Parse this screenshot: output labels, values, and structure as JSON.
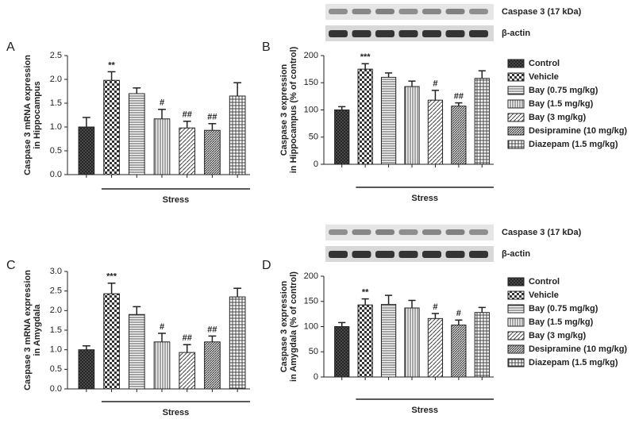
{
  "chart_data": [
    {
      "type": "bar",
      "label": "A",
      "ylabel": [
        "Caspase 3 mRNA expression",
        "in Hippocampus"
      ],
      "values": [
        1.0,
        1.98,
        1.7,
        1.17,
        0.98,
        0.93,
        1.65
      ],
      "errors": [
        0.2,
        0.18,
        0.12,
        0.2,
        0.14,
        0.14,
        0.28
      ],
      "annotations": [
        null,
        "**",
        null,
        "#",
        "##",
        "##",
        null
      ],
      "group_label": "Stress",
      "patterns": [
        "crosshatch",
        "checker",
        "horizontal",
        "vertical",
        "diagonal",
        "diagonal-dense",
        "grid"
      ],
      "ylim": [
        0,
        2.5
      ],
      "yticks": [
        {
          "value": 0,
          "label": "0.0"
        },
        0.5,
        {
          "value": 1,
          "label": "1.0"
        },
        1.5,
        {
          "value": 2,
          "label": "2.0"
        },
        2.5
      ]
    },
    {
      "type": "bar",
      "label": "B",
      "blot_labels": [
        "Caspase 3 (17 kDa)",
        "β-actin"
      ],
      "ylabel": [
        "Caspase 3 expression",
        "in Hippocampus (% of control)"
      ],
      "categories": [
        "Control",
        "Vehicle",
        "Bay (0.75 mg/kg)",
        "Bay (1.5 mg/kg)",
        "Bay (3 mg/kg)",
        "Desipramine (10 mg/kg)",
        "Diazepam (1.5 mg/kg)"
      ],
      "values": [
        100,
        175,
        160,
        143,
        118,
        107,
        158
      ],
      "errors": [
        6,
        10,
        8,
        10,
        18,
        6,
        14
      ],
      "annotations": [
        null,
        "***",
        null,
        null,
        "#",
        "##",
        null
      ],
      "group_label": "Stress",
      "patterns": [
        "crosshatch",
        "checker",
        "horizontal",
        "vertical",
        "diagonal",
        "diagonal-dense",
        "grid"
      ],
      "ylim": [
        0,
        200
      ],
      "yticks": [
        0,
        50,
        100,
        150,
        200
      ]
    },
    {
      "type": "bar",
      "label": "C",
      "ylabel": [
        "Caspase 3 mRNA expression",
        "in Amygdala"
      ],
      "values": [
        1.0,
        2.43,
        1.9,
        1.2,
        0.93,
        1.2,
        2.35
      ],
      "errors": [
        0.1,
        0.27,
        0.2,
        0.22,
        0.2,
        0.15,
        0.22
      ],
      "annotations": [
        null,
        "***",
        null,
        "#",
        "##",
        "##",
        null
      ],
      "group_label": "Stress",
      "patterns": [
        "crosshatch",
        "checker",
        "horizontal",
        "vertical",
        "diagonal",
        "diagonal-dense",
        "grid"
      ],
      "ylim": [
        0,
        3
      ],
      "yticks": [
        {
          "value": 0,
          "label": "0.0"
        },
        0.5,
        {
          "value": 1,
          "label": "1.0"
        },
        1.5,
        {
          "value": 2,
          "label": "2.0"
        },
        2.5,
        {
          "value": 3,
          "label": "3.0"
        }
      ]
    },
    {
      "type": "bar",
      "label": "D",
      "blot_labels": [
        "Caspase 3 (17 kDa)",
        "β-actin"
      ],
      "ylabel": [
        "Caspase 3 expression",
        "in Amygdala (% of control)"
      ],
      "categories": [
        "Control",
        "Vehicle",
        "Bay (0.75 mg/kg)",
        "Bay (1.5 mg/kg)",
        "Bay (3 mg/kg)",
        "Desipramine (10 mg/kg)",
        "Diazepam (1.5 mg/kg)"
      ],
      "values": [
        100,
        143,
        144,
        137,
        116,
        103,
        128
      ],
      "errors": [
        8,
        12,
        18,
        15,
        10,
        10,
        10
      ],
      "annotations": [
        null,
        "**",
        null,
        null,
        "#",
        "#",
        null
      ],
      "group_label": "Stress",
      "patterns": [
        "crosshatch",
        "checker",
        "horizontal",
        "vertical",
        "diagonal",
        "diagonal-dense",
        "grid"
      ],
      "ylim": [
        0,
        200
      ],
      "yticks": [
        0,
        50,
        100,
        150,
        200
      ]
    }
  ]
}
